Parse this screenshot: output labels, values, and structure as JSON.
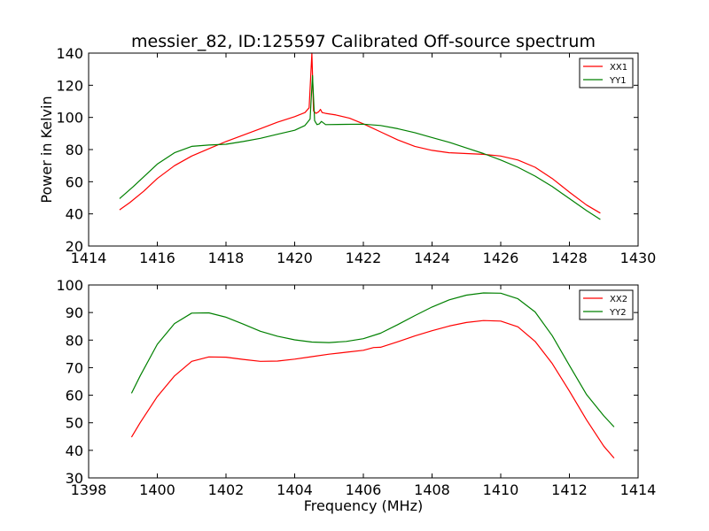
{
  "chart_data": [
    {
      "type": "line",
      "title": "messier_82, ID:125597 Calibrated Off-source spectrum",
      "xlabel": "",
      "ylabel": "Power in Kelvin",
      "xlim": [
        1414,
        1430
      ],
      "ylim": [
        20,
        140
      ],
      "xticks": [
        "1414",
        "1416",
        "1418",
        "1420",
        "1422",
        "1424",
        "1426",
        "1428",
        "1430"
      ],
      "yticks": [
        "20",
        "40",
        "60",
        "80",
        "100",
        "120",
        "140"
      ],
      "legend_position": "top-right",
      "series": [
        {
          "name": "XX1",
          "color": "#ff0000",
          "x": [
            1414.9,
            1415.2,
            1415.6,
            1416.0,
            1416.5,
            1417.0,
            1417.5,
            1418.0,
            1418.5,
            1419.0,
            1419.5,
            1420.0,
            1420.3,
            1420.42,
            1420.5,
            1420.55,
            1420.62,
            1420.7,
            1420.75,
            1420.8,
            1420.9,
            1421.2,
            1421.6,
            1422.0,
            1422.5,
            1423.0,
            1423.5,
            1424.0,
            1424.5,
            1425.0,
            1425.5,
            1426.0,
            1426.5,
            1427.0,
            1427.5,
            1428.0,
            1428.5,
            1428.9
          ],
          "values": [
            42.5,
            47,
            54,
            62,
            70,
            76,
            80.5,
            85,
            89,
            93,
            97,
            100.5,
            103,
            106,
            140,
            104,
            102.5,
            103.5,
            105,
            103,
            102.5,
            101.5,
            99.5,
            96,
            91,
            86,
            82,
            79.5,
            78,
            77.5,
            77,
            76,
            73.5,
            69,
            62,
            53.5,
            45.5,
            40.5
          ]
        },
        {
          "name": "YY1",
          "color": "#008000",
          "x": [
            1414.9,
            1415.3,
            1415.7,
            1416.0,
            1416.5,
            1417.0,
            1417.5,
            1418.0,
            1418.5,
            1419.0,
            1419.5,
            1420.0,
            1420.3,
            1420.45,
            1420.52,
            1420.58,
            1420.65,
            1420.72,
            1420.78,
            1420.9,
            1421.5,
            1422.0,
            1422.5,
            1423.0,
            1423.5,
            1424.0,
            1424.5,
            1425.0,
            1425.5,
            1426.0,
            1426.5,
            1427.0,
            1427.5,
            1428.0,
            1428.5,
            1428.9
          ],
          "values": [
            49.5,
            57,
            65,
            71,
            78,
            82,
            82.8,
            83.3,
            85,
            87,
            89.5,
            92,
            95,
            99,
            126,
            98,
            95.5,
            96,
            97.5,
            95.5,
            95.7,
            95.8,
            95,
            93,
            90.5,
            87.5,
            84.5,
            81,
            77.5,
            73.5,
            69,
            63.5,
            57,
            49.5,
            42,
            36.5
          ]
        }
      ]
    },
    {
      "type": "line",
      "title": "",
      "xlabel": "Frequency (MHz)",
      "ylabel": "",
      "xlim": [
        1398,
        1414
      ],
      "ylim": [
        30,
        100
      ],
      "xticks": [
        "1398",
        "1400",
        "1402",
        "1404",
        "1406",
        "1408",
        "1410",
        "1412",
        "1414"
      ],
      "yticks": [
        "30",
        "40",
        "50",
        "60",
        "70",
        "80",
        "90",
        "100"
      ],
      "legend_position": "top-right",
      "series": [
        {
          "name": "XX2",
          "color": "#ff0000",
          "x": [
            1399.25,
            1399.5,
            1400.0,
            1400.5,
            1401.0,
            1401.5,
            1402.0,
            1402.5,
            1403.0,
            1403.5,
            1404.0,
            1404.5,
            1405.0,
            1405.5,
            1406.0,
            1406.3,
            1406.5,
            1407.0,
            1407.5,
            1408.0,
            1408.5,
            1409.0,
            1409.5,
            1410.0,
            1410.5,
            1411.0,
            1411.5,
            1412.0,
            1412.5,
            1413.0,
            1413.3
          ],
          "values": [
            44.8,
            50,
            59.5,
            67,
            72.3,
            73.9,
            73.8,
            73,
            72.3,
            72.4,
            73.1,
            74,
            74.9,
            75.6,
            76.3,
            77.3,
            77.4,
            79.4,
            81.5,
            83.4,
            85.1,
            86.4,
            87.1,
            86.9,
            84.8,
            79.5,
            71.5,
            61.5,
            51,
            41.5,
            37.2
          ]
        },
        {
          "name": "YY2",
          "color": "#008000",
          "x": [
            1399.25,
            1399.5,
            1400.0,
            1400.5,
            1401.0,
            1401.5,
            1402.0,
            1402.5,
            1403.0,
            1403.5,
            1404.0,
            1404.5,
            1405.0,
            1405.5,
            1406.0,
            1406.5,
            1407.0,
            1407.5,
            1408.0,
            1408.5,
            1409.0,
            1409.5,
            1410.0,
            1410.5,
            1411.0,
            1411.5,
            1412.0,
            1412.5,
            1413.0,
            1413.3
          ],
          "values": [
            60.7,
            67,
            78.5,
            86,
            89.8,
            89.9,
            88.3,
            85.8,
            83.2,
            81.4,
            80.1,
            79.3,
            79.1,
            79.5,
            80.5,
            82.5,
            85.6,
            88.9,
            92,
            94.6,
            96.3,
            97.1,
            97,
            95,
            90.2,
            81.6,
            70.8,
            60.2,
            52.5,
            48.5
          ]
        }
      ]
    }
  ]
}
